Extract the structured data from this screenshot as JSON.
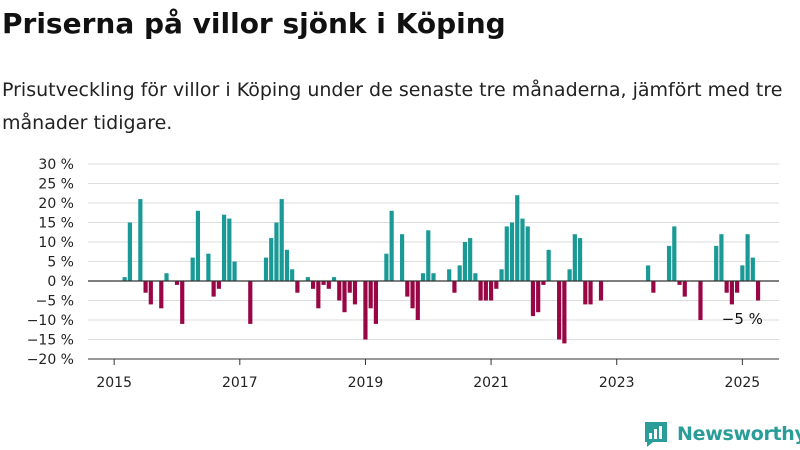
{
  "title": "Priserna på villor sjönk i Köping",
  "subtitle": "Prisutveckling för villor i Köping under de senaste tre månaderna, jämfört med tre månader tidigare.",
  "brand": {
    "name": "Newsworthy",
    "logo_icon": "newsworthy-logo-icon"
  },
  "colors": {
    "positive": "#1a9a96",
    "negative": "#990645",
    "grid": "#dddddd",
    "axis": "#333333"
  },
  "chart_data": {
    "type": "bar",
    "title": "Priserna på villor sjönk i Köping",
    "xlabel": "",
    "ylabel": "",
    "ylim": [
      -20,
      30
    ],
    "y_ticks": [
      30,
      25,
      20,
      15,
      10,
      5,
      0,
      -5,
      -10,
      -15,
      -20
    ],
    "y_tick_labels": [
      "30 %",
      "25 %",
      "20 %",
      "15 %",
      "10 %",
      "5 %",
      "0 %",
      "−5 %",
      "−10 %",
      "−15 %",
      "−20 %"
    ],
    "x_tick_labels": [
      "2015",
      "2017",
      "2019",
      "2021",
      "2023",
      "2025"
    ],
    "x_tick_years": [
      2015,
      2017,
      2019,
      2021,
      2023,
      2025
    ],
    "grid": true,
    "start_period": "2015-01",
    "x_range": [
      "2014-08",
      "2025-08"
    ],
    "annotation": {
      "text": "−5 %",
      "period": "2025-01"
    },
    "values": [
      null,
      null,
      1,
      15,
      null,
      21,
      -3,
      -6,
      null,
      -7,
      2,
      null,
      -1,
      -11,
      null,
      6,
      18,
      null,
      7,
      -4,
      -2,
      17,
      16,
      5,
      null,
      null,
      -11,
      null,
      null,
      6,
      11,
      15,
      21,
      8,
      3,
      -3,
      0,
      1,
      -2,
      -7,
      -1,
      -2,
      1,
      -5,
      -8,
      -3,
      -6,
      null,
      -15,
      -7,
      -11,
      null,
      7,
      18,
      null,
      12,
      -4,
      -7,
      -10,
      2,
      13,
      2,
      null,
      null,
      3,
      -3,
      4,
      10,
      11,
      2,
      -5,
      -5,
      -5,
      -2,
      3,
      14,
      15,
      22,
      16,
      14,
      -9,
      -8,
      -1,
      8,
      null,
      -15,
      -16,
      3,
      12,
      11,
      -6,
      -6,
      null,
      -5,
      null,
      null,
      null,
      null,
      null,
      null,
      null,
      null,
      4,
      -3,
      null,
      null,
      9,
      14,
      -1,
      -4,
      null,
      null,
      -10,
      null,
      null,
      9,
      12,
      -3,
      -6,
      -3,
      4,
      12,
      6,
      -5
    ]
  }
}
